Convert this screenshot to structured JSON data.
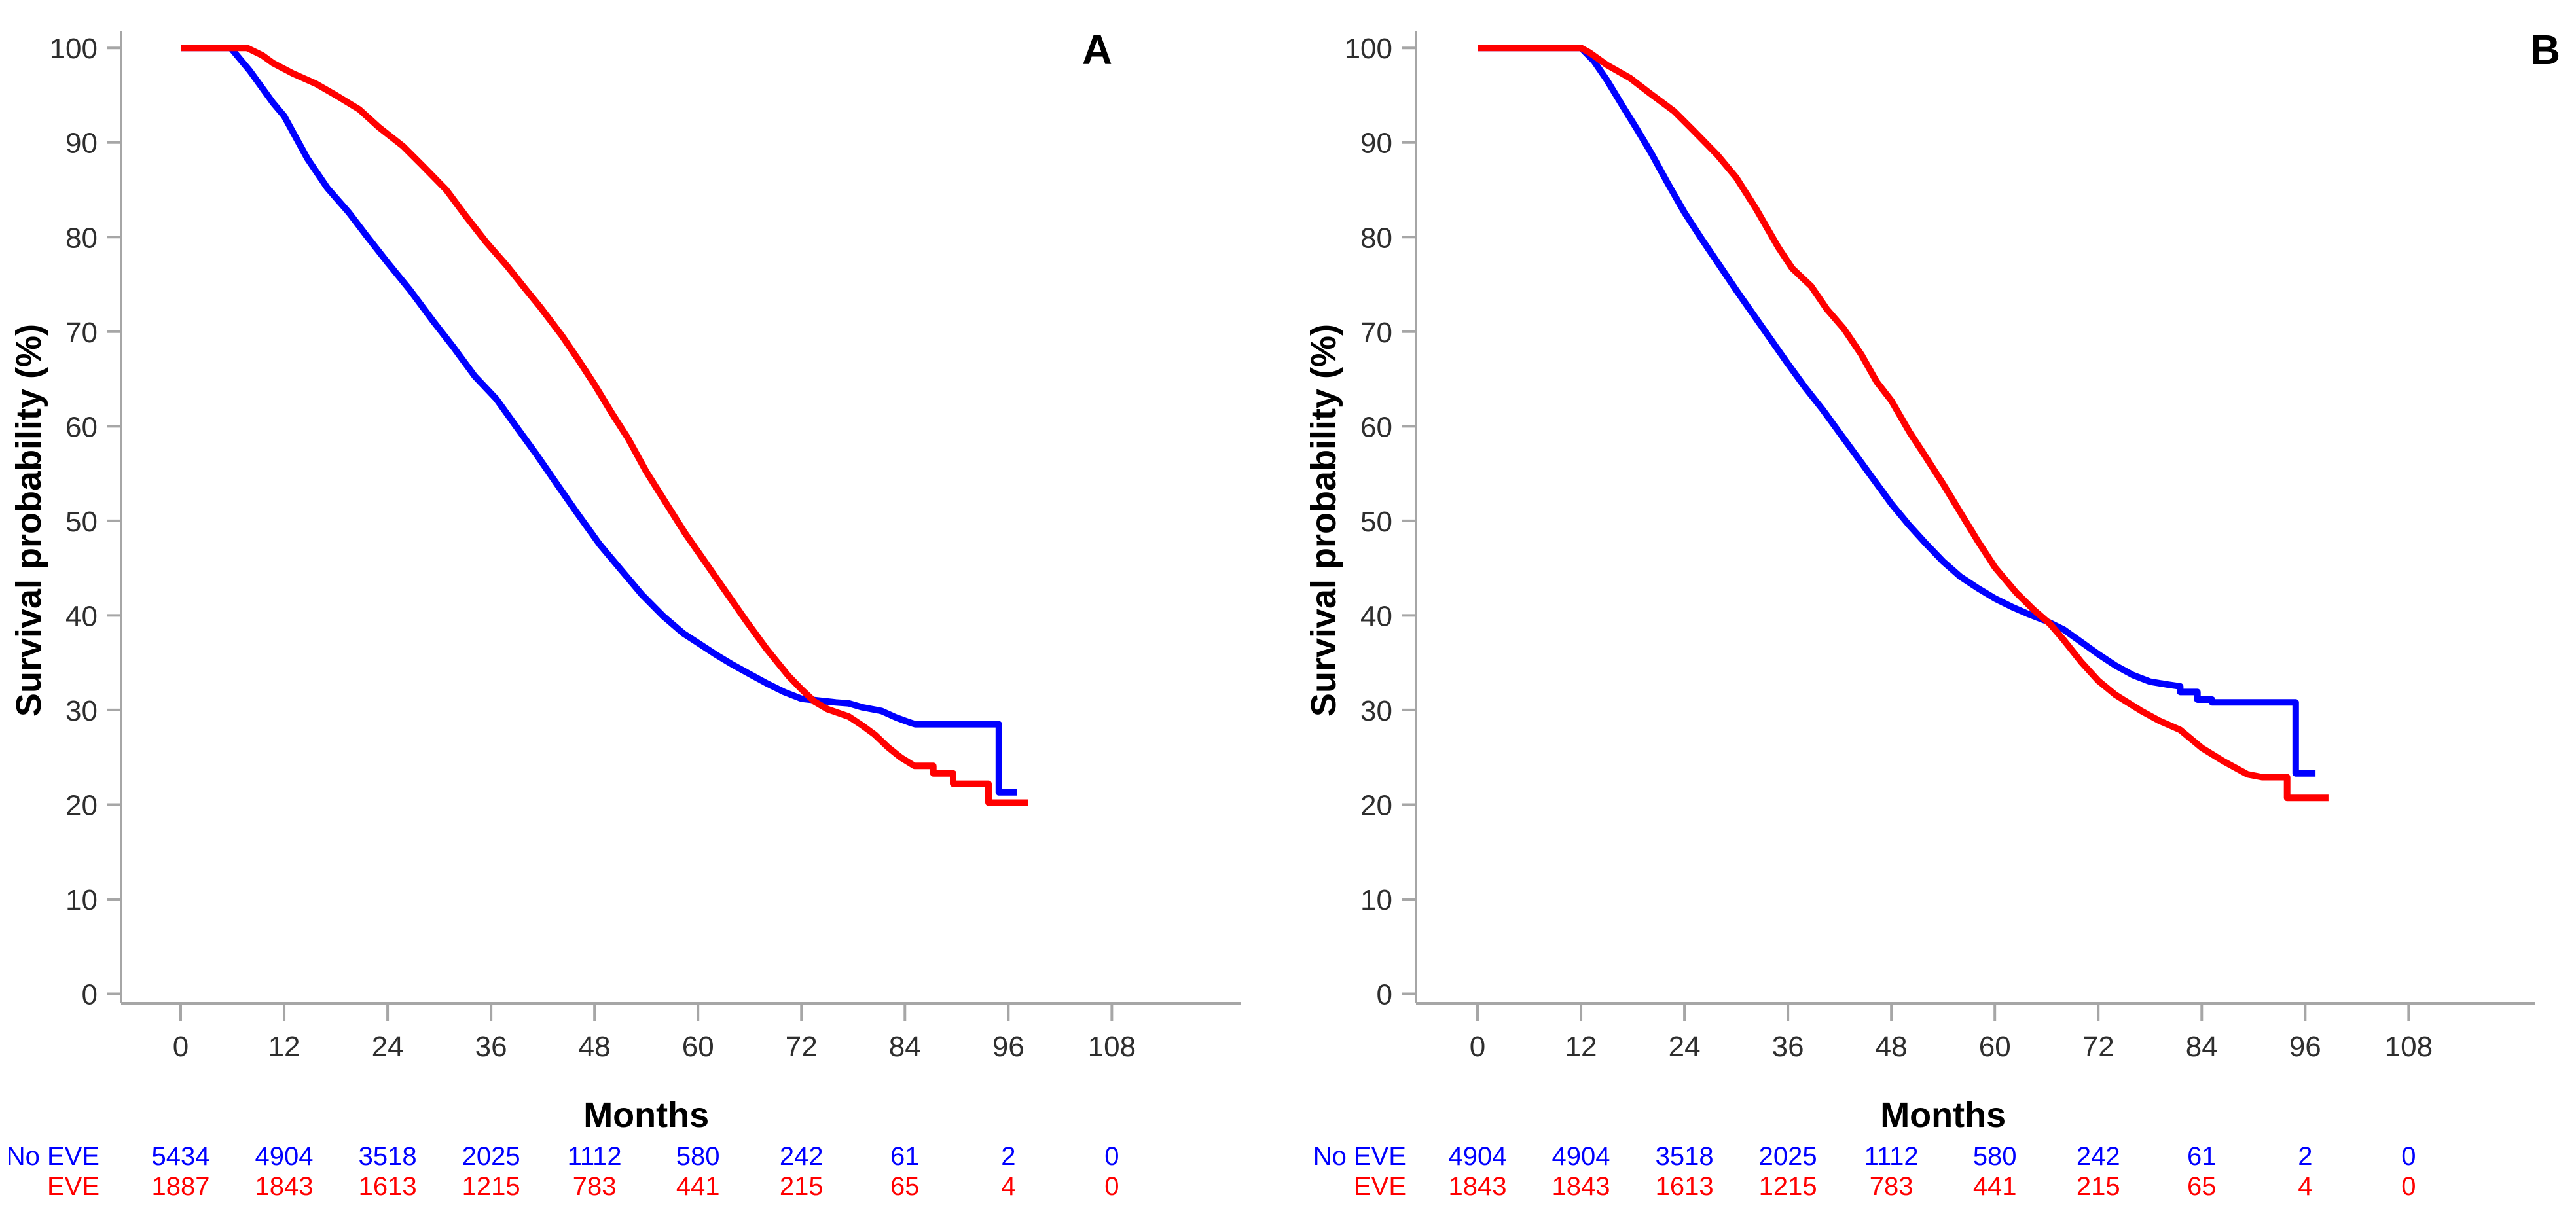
{
  "figure": {
    "background": "#ffffff",
    "panel_letters": [
      "A",
      "B"
    ]
  },
  "colors": {
    "no_eve": "#0000ff",
    "eve": "#ff0000",
    "axis_line": "#a6a6a6",
    "tick_text": "#2e2e2e",
    "title_text": "#000000"
  },
  "chart_data": [
    {
      "type": "line",
      "panel_letter": "A",
      "title": "",
      "xlabel": "Months",
      "ylabel": "Survival probability (%)",
      "x_ticks": [
        0,
        12,
        24,
        36,
        48,
        60,
        72,
        84,
        96,
        108
      ],
      "y_ticks": [
        0,
        10,
        20,
        30,
        40,
        50,
        60,
        70,
        80,
        90,
        100
      ],
      "xlim": [
        0,
        114
      ],
      "ylim": [
        0,
        100
      ],
      "grid": false,
      "legend_position": "none",
      "series": [
        {
          "name": "No EVE",
          "color": "#0000ff",
          "points": [
            [
              0,
              100
            ],
            [
              5.8,
              100
            ],
            [
              8,
              97.6
            ],
            [
              10.7,
              94.2
            ],
            [
              12,
              92.8
            ],
            [
              14.7,
              88.3
            ],
            [
              17,
              85.2
            ],
            [
              19.5,
              82.6
            ],
            [
              21.5,
              80.2
            ],
            [
              24,
              77.3
            ],
            [
              26.6,
              74.4
            ],
            [
              29.2,
              71.2
            ],
            [
              31.6,
              68.4
            ],
            [
              34.1,
              65.3
            ],
            [
              36.6,
              62.9
            ],
            [
              39.2,
              59.6
            ],
            [
              41.2,
              57.1
            ],
            [
              43.7,
              53.8
            ],
            [
              46,
              50.8
            ],
            [
              48.6,
              47.5
            ],
            [
              51,
              44.9
            ],
            [
              53.5,
              42.2
            ],
            [
              56,
              39.9
            ],
            [
              58.3,
              38.1
            ],
            [
              60,
              37.1
            ],
            [
              62,
              35.9
            ],
            [
              64,
              34.8
            ],
            [
              66,
              33.8
            ],
            [
              68,
              32.8
            ],
            [
              70,
              31.9
            ],
            [
              72,
              31.2
            ],
            [
              74,
              31.0
            ],
            [
              76,
              30.8
            ],
            [
              77.5,
              30.7
            ],
            [
              79,
              30.3
            ],
            [
              81.3,
              29.9
            ],
            [
              83,
              29.2
            ],
            [
              84.5,
              28.7
            ],
            [
              85.2,
              28.5
            ],
            [
              94.9,
              28.5
            ],
            [
              94.9,
              21.3
            ],
            [
              97,
              21.3
            ]
          ]
        },
        {
          "name": "EVE",
          "color": "#ff0000",
          "points": [
            [
              0,
              100
            ],
            [
              7.7,
              100
            ],
            [
              9.5,
              99.2
            ],
            [
              10.7,
              98.4
            ],
            [
              13,
              97.3
            ],
            [
              15.7,
              96.2
            ],
            [
              18,
              95.0
            ],
            [
              20.7,
              93.5
            ],
            [
              23,
              91.6
            ],
            [
              25.8,
              89.6
            ],
            [
              28,
              87.6
            ],
            [
              30.8,
              85.0
            ],
            [
              33,
              82.3
            ],
            [
              35.4,
              79.5
            ],
            [
              37.9,
              76.9
            ],
            [
              40,
              74.5
            ],
            [
              41.7,
              72.6
            ],
            [
              44.2,
              69.6
            ],
            [
              46,
              67.2
            ],
            [
              48,
              64.4
            ],
            [
              50,
              61.4
            ],
            [
              51.9,
              58.7
            ],
            [
              54,
              55.2
            ],
            [
              56.7,
              51.3
            ],
            [
              58.5,
              48.7
            ],
            [
              60.8,
              45.7
            ],
            [
              63,
              42.8
            ],
            [
              65.6,
              39.4
            ],
            [
              68,
              36.4
            ],
            [
              70.5,
              33.6
            ],
            [
              72,
              32.2
            ],
            [
              73.5,
              30.9
            ],
            [
              75,
              30.1
            ],
            [
              77.5,
              29.3
            ],
            [
              79,
              28.4
            ],
            [
              80.5,
              27.4
            ],
            [
              82,
              26.1
            ],
            [
              83.5,
              25.0
            ],
            [
              85.1,
              24.1
            ],
            [
              87.3,
              24.1
            ],
            [
              87.3,
              23.3
            ],
            [
              89.6,
              23.3
            ],
            [
              89.6,
              22.2
            ],
            [
              93.7,
              22.2
            ],
            [
              93.7,
              20.2
            ],
            [
              98.3,
              20.2
            ]
          ]
        }
      ],
      "risk_table": {
        "rows": [
          {
            "label": "No EVE",
            "color": "#0000ff",
            "values": [
              "5434",
              "4904",
              "3518",
              "2025",
              "1112",
              "580",
              "242",
              "61",
              "2",
              "0"
            ]
          },
          {
            "label": "EVE",
            "color": "#ff0000",
            "values": [
              "1887",
              "1843",
              "1613",
              "1215",
              "783",
              "441",
              "215",
              "65",
              "4",
              "0"
            ]
          }
        ]
      }
    },
    {
      "type": "line",
      "panel_letter": "B",
      "title": "",
      "xlabel": "Months",
      "ylabel": "Survival probability (%)",
      "x_ticks": [
        0,
        12,
        24,
        36,
        48,
        60,
        72,
        84,
        96,
        108
      ],
      "y_ticks": [
        0,
        10,
        20,
        30,
        40,
        50,
        60,
        70,
        80,
        90,
        100
      ],
      "xlim": [
        0,
        114
      ],
      "ylim": [
        0,
        100
      ],
      "grid": false,
      "legend_position": "none",
      "series": [
        {
          "name": "No EVE",
          "color": "#0000ff",
          "points": [
            [
              0,
              100
            ],
            [
              12,
              100
            ],
            [
              13.5,
              98.6
            ],
            [
              15,
              96.6
            ],
            [
              17,
              93.6
            ],
            [
              18.5,
              91.4
            ],
            [
              20.2,
              88.8
            ],
            [
              22,
              85.8
            ],
            [
              24,
              82.6
            ],
            [
              26,
              79.8
            ],
            [
              28,
              77.1
            ],
            [
              30,
              74.4
            ],
            [
              32,
              71.8
            ],
            [
              34,
              69.2
            ],
            [
              36,
              66.6
            ],
            [
              38,
              64.1
            ],
            [
              40,
              61.8
            ],
            [
              42,
              59.3
            ],
            [
              44,
              56.8
            ],
            [
              46,
              54.3
            ],
            [
              48,
              51.8
            ],
            [
              50,
              49.6
            ],
            [
              52,
              47.6
            ],
            [
              54,
              45.7
            ],
            [
              56,
              44.1
            ],
            [
              58,
              42.9
            ],
            [
              60,
              41.8
            ],
            [
              62,
              40.9
            ],
            [
              64,
              40.1
            ],
            [
              66,
              39.4
            ],
            [
              68,
              38.5
            ],
            [
              70,
              37.2
            ],
            [
              72,
              35.9
            ],
            [
              74,
              34.7
            ],
            [
              76,
              33.7
            ],
            [
              78,
              33.0
            ],
            [
              80,
              32.7
            ],
            [
              81.5,
              32.5
            ],
            [
              81.5,
              31.9
            ],
            [
              83.5,
              31.9
            ],
            [
              83.5,
              31.1
            ],
            [
              85.2,
              31.1
            ],
            [
              85.2,
              30.8
            ],
            [
              94.9,
              30.8
            ],
            [
              94.9,
              23.3
            ],
            [
              97.2,
              23.3
            ]
          ]
        },
        {
          "name": "EVE",
          "color": "#ff0000",
          "points": [
            [
              0,
              100
            ],
            [
              12,
              100
            ],
            [
              13,
              99.5
            ],
            [
              15,
              98.2
            ],
            [
              17.7,
              96.8
            ],
            [
              20,
              95.2
            ],
            [
              22.8,
              93.3
            ],
            [
              25,
              91.3
            ],
            [
              27.8,
              88.7
            ],
            [
              30,
              86.3
            ],
            [
              32.3,
              83.0
            ],
            [
              34.9,
              78.9
            ],
            [
              36.5,
              76.7
            ],
            [
              38.7,
              74.8
            ],
            [
              40.5,
              72.4
            ],
            [
              42.5,
              70.3
            ],
            [
              44.5,
              67.6
            ],
            [
              46.3,
              64.7
            ],
            [
              48,
              62.7
            ],
            [
              50.1,
              59.4
            ],
            [
              51.6,
              57.3
            ],
            [
              54,
              53.9
            ],
            [
              56,
              50.9
            ],
            [
              58,
              47.9
            ],
            [
              60,
              45.1
            ],
            [
              62.5,
              42.4
            ],
            [
              64.5,
              40.6
            ],
            [
              66.4,
              39.1
            ],
            [
              68,
              37.4
            ],
            [
              70,
              35.1
            ],
            [
              72,
              33.1
            ],
            [
              74,
              31.6
            ],
            [
              75.4,
              30.8
            ],
            [
              77,
              29.9
            ],
            [
              79,
              28.9
            ],
            [
              81.5,
              27.9
            ],
            [
              84,
              26.0
            ],
            [
              86.5,
              24.6
            ],
            [
              89.3,
              23.2
            ],
            [
              91,
              22.9
            ],
            [
              93.9,
              22.9
            ],
            [
              93.9,
              20.7
            ],
            [
              98.7,
              20.7
            ]
          ]
        }
      ],
      "risk_table": {
        "rows": [
          {
            "label": "No EVE",
            "color": "#0000ff",
            "values": [
              "4904",
              "4904",
              "3518",
              "2025",
              "1112",
              "580",
              "242",
              "61",
              "2",
              "0"
            ]
          },
          {
            "label": "EVE",
            "color": "#ff0000",
            "values": [
              "1843",
              "1843",
              "1613",
              "1215",
              "783",
              "441",
              "215",
              "65",
              "4",
              "0"
            ]
          }
        ]
      }
    }
  ]
}
